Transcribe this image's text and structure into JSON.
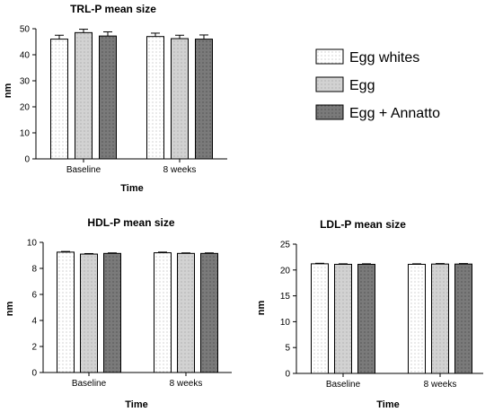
{
  "legend": {
    "entries": [
      "Egg whites",
      "Egg",
      "Egg + Annatto"
    ],
    "colors": [
      "#ffffff",
      "#cfcfcf",
      "#737373"
    ]
  },
  "chart_data": [
    {
      "type": "bar",
      "title": "TRL-P mean size",
      "xlabel": "Time",
      "ylabel": "nm",
      "categories": [
        "Baseline",
        "8 weeks"
      ],
      "series": [
        {
          "name": "Egg whites",
          "values": [
            46,
            47
          ],
          "errors": [
            1.5,
            1.3
          ]
        },
        {
          "name": "Egg",
          "values": [
            48.5,
            46.2
          ],
          "errors": [
            1.3,
            1.3
          ]
        },
        {
          "name": "Egg + Annatto",
          "values": [
            47.2,
            46
          ],
          "errors": [
            1.6,
            1.6
          ]
        }
      ],
      "ylim": [
        0,
        50
      ],
      "yticks": [
        0,
        10,
        20,
        30,
        40,
        50
      ],
      "legend_position": "right"
    },
    {
      "type": "bar",
      "title": "HDL-P mean size",
      "xlabel": "Time",
      "ylabel": "nm",
      "categories": [
        "Baseline",
        "8 weeks"
      ],
      "series": [
        {
          "name": "Egg whites",
          "values": [
            9.25,
            9.2
          ],
          "errors": [
            0.05,
            0.05
          ]
        },
        {
          "name": "Egg",
          "values": [
            9.1,
            9.15
          ],
          "errors": [
            0.04,
            0.04
          ]
        },
        {
          "name": "Egg + Annatto",
          "values": [
            9.15,
            9.15
          ],
          "errors": [
            0.04,
            0.04
          ]
        }
      ],
      "ylim": [
        0,
        10
      ],
      "yticks": [
        0,
        2,
        4,
        6,
        8,
        10
      ]
    },
    {
      "type": "bar",
      "title": "LDL-P mean size",
      "xlabel": "Time",
      "ylabel": "nm",
      "categories": [
        "Baseline",
        "8 weeks"
      ],
      "series": [
        {
          "name": "Egg whites",
          "values": [
            21.2,
            21.1
          ],
          "errors": [
            0.1,
            0.1
          ]
        },
        {
          "name": "Egg",
          "values": [
            21.1,
            21.15
          ],
          "errors": [
            0.1,
            0.1
          ]
        },
        {
          "name": "Egg + Annatto",
          "values": [
            21.1,
            21.15
          ],
          "errors": [
            0.1,
            0.1
          ]
        }
      ],
      "ylim": [
        0,
        25
      ],
      "yticks": [
        0,
        5,
        10,
        15,
        20,
        25
      ]
    }
  ]
}
